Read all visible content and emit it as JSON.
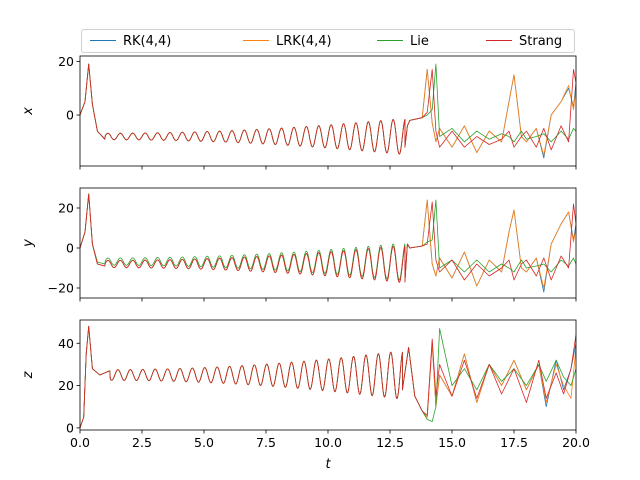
{
  "chart_data": {
    "type": "line",
    "xlabel": "t",
    "xlim": [
      0,
      20
    ],
    "x_ticks": [
      "0.0",
      "2.5",
      "5.0",
      "7.5",
      "10.0",
      "12.5",
      "15.0",
      "17.5",
      "20.0"
    ],
    "legend_position": "top",
    "series": [
      {
        "name": "RK(4,4)",
        "color": "#1f77b4"
      },
      {
        "name": "LRK(4,4)",
        "color": "#ff7f0e"
      },
      {
        "name": "Lie",
        "color": "#2ca02c"
      },
      {
        "name": "Strang",
        "color": "#d62728"
      }
    ],
    "panels": [
      {
        "ylabel": "x",
        "ylim": [
          -19,
          22
        ],
        "y_ticks": [
          "20",
          "0"
        ],
        "y_tick_values": [
          20,
          0
        ],
        "t": [
          0.0,
          0.2,
          0.35,
          0.5,
          0.7,
          1.0,
          13.1,
          13.2,
          13.3,
          13.8,
          14.0,
          14.2,
          14.35,
          14.5,
          15.0,
          15.5,
          16.0,
          16.5,
          17.0,
          17.3,
          17.5,
          17.8,
          18.0,
          18.4,
          18.7,
          19.0,
          19.4,
          19.7,
          19.9,
          20.0
        ],
        "values": {
          "RK(4,4)": [
            0,
            5,
            19,
            4,
            -6,
            -9,
            -12,
            -4,
            -2,
            -1,
            17,
            -3,
            -10,
            -5,
            -12,
            -4,
            -14,
            -6,
            -10,
            5,
            15,
            -8,
            -10,
            -5,
            -16,
            0,
            5,
            10,
            3,
            12
          ],
          "LRK(4,4)": [
            0,
            5,
            19,
            4,
            -6,
            -9,
            -12,
            -4,
            -2,
            -1,
            17,
            -3,
            -10,
            -5,
            -12,
            -4,
            -14,
            -6,
            -10,
            5,
            15,
            -8,
            -10,
            -5,
            -15,
            0,
            5,
            11,
            2,
            10
          ],
          "Lie": [
            0,
            5,
            19,
            4,
            -6,
            -9,
            -12,
            -4,
            -2,
            -1,
            0,
            2,
            19,
            -8,
            -5,
            -10,
            -6,
            -9,
            -7,
            -8,
            -10,
            -6,
            -9,
            -8,
            -7,
            -10,
            -6,
            -9,
            -5,
            -6
          ],
          "Strang": [
            0,
            5,
            19,
            4,
            -6,
            -9,
            -12,
            -4,
            -2,
            -1,
            1,
            17,
            -6,
            -12,
            -6,
            -12,
            -8,
            -11,
            -9,
            -6,
            -12,
            -8,
            -6,
            -12,
            -5,
            -13,
            -4,
            -10,
            17,
            12
          ]
        }
      },
      {
        "ylabel": "y",
        "ylim": [
          -25,
          30
        ],
        "y_ticks": [
          "20",
          "0",
          "−20"
        ],
        "y_tick_values": [
          20,
          0,
          -20
        ],
        "t": [
          0.0,
          0.2,
          0.35,
          0.5,
          0.7,
          1.0,
          13.1,
          13.2,
          13.3,
          13.8,
          14.0,
          14.2,
          14.35,
          14.5,
          15.0,
          15.5,
          16.0,
          16.5,
          17.0,
          17.3,
          17.5,
          17.8,
          18.0,
          18.4,
          18.7,
          19.0,
          19.4,
          19.7,
          19.9,
          20.0
        ],
        "values": {
          "RK(4,4)": [
            0,
            8,
            27,
            2,
            -8,
            -9,
            -17,
            2,
            0,
            1,
            24,
            -8,
            -14,
            -5,
            -15,
            -2,
            -19,
            -6,
            -12,
            8,
            19,
            -10,
            -12,
            -5,
            -22,
            2,
            12,
            18,
            4,
            12
          ],
          "LRK(4,4)": [
            0,
            8,
            27,
            2,
            -8,
            -9,
            -17,
            2,
            0,
            1,
            24,
            -8,
            -14,
            -5,
            -15,
            -2,
            -19,
            -6,
            -12,
            8,
            19,
            -10,
            -12,
            -5,
            -20,
            2,
            12,
            18,
            3,
            10
          ],
          "Lie": [
            0,
            8,
            27,
            2,
            -7,
            -8,
            -17,
            2,
            0,
            1,
            3,
            4,
            24,
            -10,
            -6,
            -12,
            -6,
            -12,
            -8,
            -10,
            -12,
            -6,
            -10,
            -9,
            -8,
            -12,
            -6,
            -9,
            -5,
            -8
          ],
          "Strang": [
            0,
            8,
            27,
            2,
            -8,
            -9,
            -17,
            2,
            0,
            1,
            2,
            23,
            -6,
            -12,
            -6,
            -16,
            -8,
            -14,
            -10,
            -6,
            -16,
            -8,
            -6,
            -14,
            -5,
            -16,
            -4,
            -10,
            22,
            12
          ]
        }
      },
      {
        "ylabel": "z",
        "ylim": [
          -1,
          51
        ],
        "y_ticks": [
          "40",
          "20",
          "0"
        ],
        "y_tick_values": [
          40,
          20,
          0
        ],
        "t": [
          0.0,
          0.15,
          0.25,
          0.35,
          0.5,
          0.8,
          1.2,
          13.0,
          13.25,
          13.5,
          13.8,
          14.0,
          14.2,
          14.35,
          14.5,
          15.0,
          15.5,
          16.0,
          16.5,
          17.0,
          17.5,
          18.0,
          18.5,
          18.8,
          19.2,
          19.5,
          19.8,
          20.0
        ],
        "values": {
          "RK(4,4)": [
            0,
            5,
            35,
            48,
            28,
            25,
            27,
            18,
            38,
            15,
            8,
            5,
            40,
            10,
            25,
            15,
            35,
            12,
            30,
            20,
            32,
            18,
            30,
            10,
            32,
            18,
            28,
            40
          ],
          "LRK(4,4)": [
            0,
            5,
            35,
            48,
            28,
            25,
            27,
            18,
            38,
            15,
            8,
            5,
            40,
            10,
            25,
            15,
            35,
            12,
            30,
            20,
            32,
            18,
            30,
            12,
            30,
            20,
            14,
            38
          ],
          "Lie": [
            0,
            5,
            35,
            48,
            28,
            25,
            27,
            18,
            38,
            15,
            8,
            4,
            3,
            10,
            47,
            20,
            28,
            18,
            30,
            22,
            28,
            20,
            30,
            22,
            32,
            24,
            20,
            28
          ],
          "Strang": [
            0,
            5,
            35,
            48,
            28,
            25,
            27,
            18,
            38,
            15,
            8,
            6,
            42,
            15,
            30,
            15,
            32,
            14,
            30,
            16,
            28,
            12,
            32,
            14,
            26,
            16,
            28,
            44
          ]
        }
      }
    ]
  }
}
